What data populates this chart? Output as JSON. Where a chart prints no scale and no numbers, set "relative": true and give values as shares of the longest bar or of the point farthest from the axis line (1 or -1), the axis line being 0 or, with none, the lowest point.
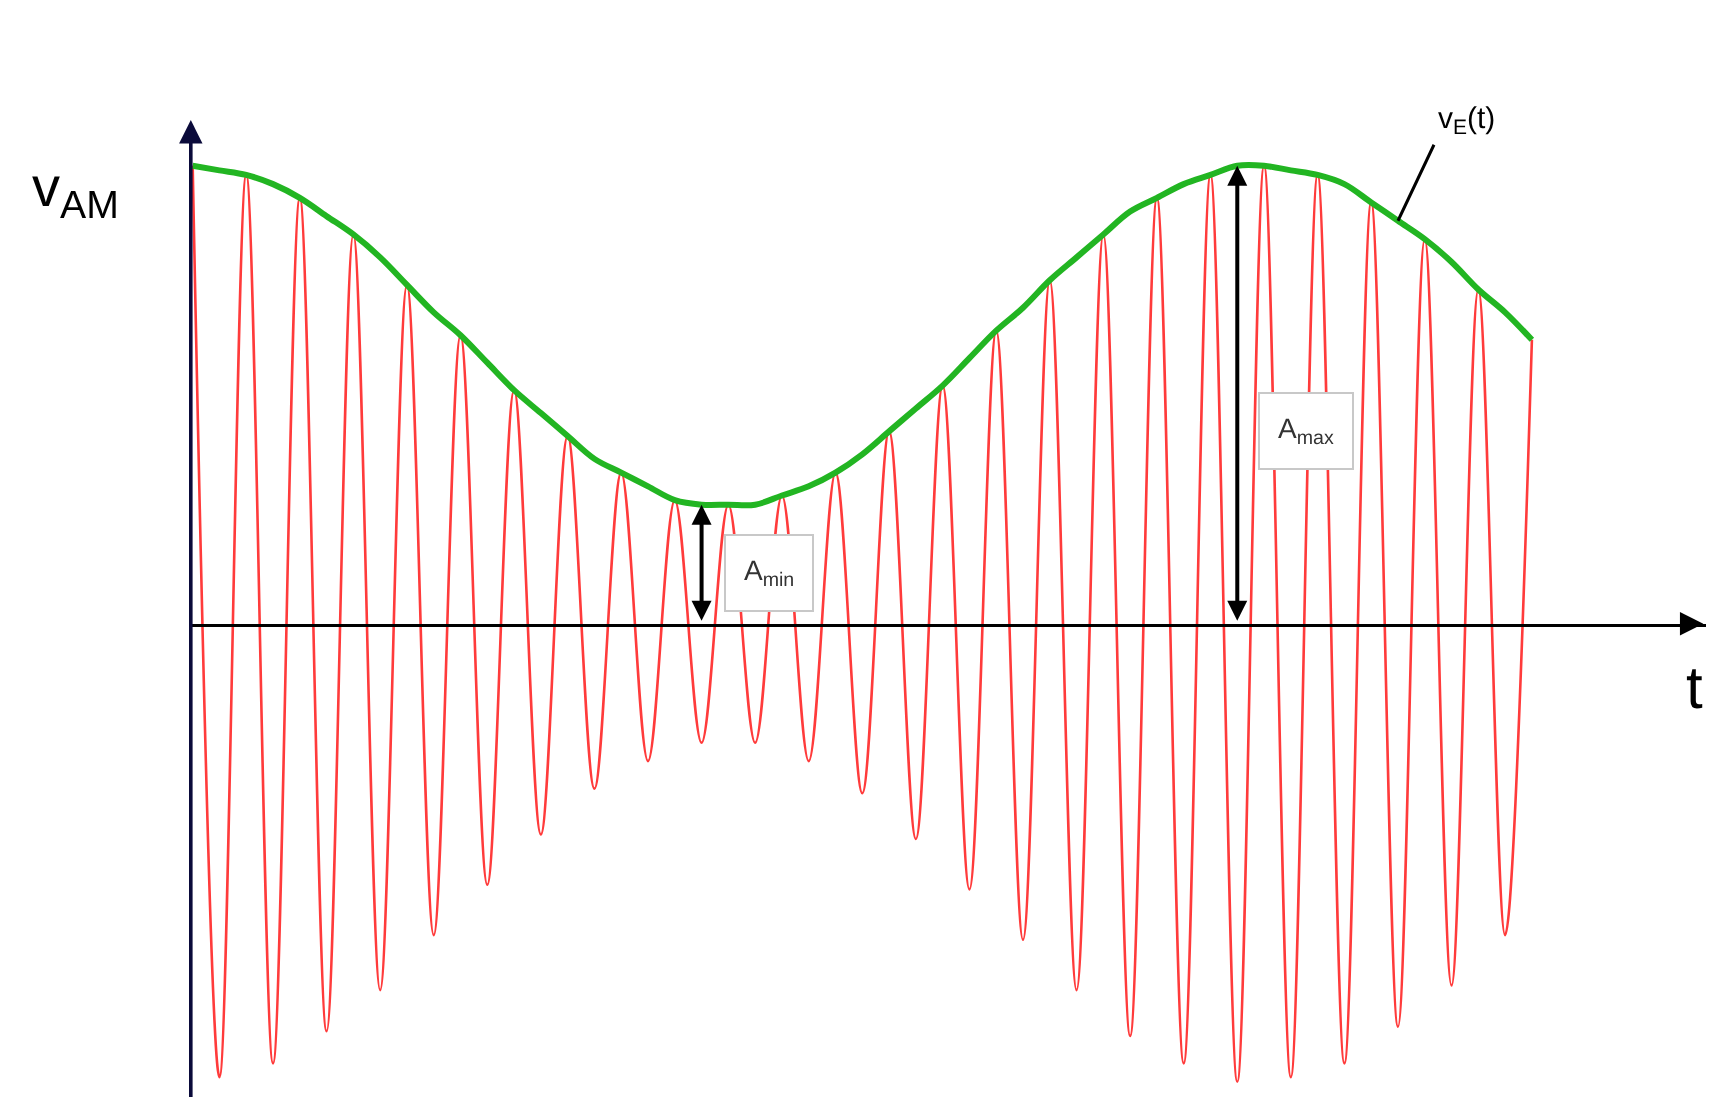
{
  "chart_data": {
    "type": "line",
    "relative": true,
    "ylabel": "v$_{AM}$",
    "xlabel": "t",
    "tick_labels": false,
    "legend": false,
    "categories": [
      null,
      null,
      null,
      null,
      null,
      null,
      null,
      null,
      null,
      null,
      null,
      null,
      null,
      null,
      null,
      null,
      null,
      null,
      null,
      null,
      null,
      null,
      null,
      null,
      null,
      null,
      null,
      null,
      null,
      null,
      null,
      null,
      null,
      null,
      null,
      null,
      null,
      null,
      null,
      null,
      null,
      null,
      null,
      null,
      null,
      null,
      null,
      null,
      null,
      null,
      null
    ],
    "series": [
      {
        "color": "#ff3b3b",
        "values": [
          1.0,
          -0.99,
          0.98,
          -0.96,
          0.93,
          -0.89,
          0.85,
          -0.8,
          0.74,
          -0.68,
          0.63,
          -0.57,
          0.51,
          -0.46,
          0.41,
          -0.36,
          0.33,
          -0.3,
          0.27,
          -0.26,
          0.26,
          -0.26,
          0.28,
          -0.3,
          0.33,
          -0.37,
          0.42,
          -0.47,
          0.52,
          -0.58,
          0.64,
          -0.69,
          0.75,
          -0.8,
          0.85,
          -0.9,
          0.93,
          -0.96,
          0.98,
          -1.0,
          1.0,
          -0.99,
          0.98,
          -0.96,
          0.92,
          -0.88,
          0.84,
          -0.79,
          0.73,
          -0.68,
          0.62
        ]
      },
      {
        "name": "v$_{E}$(t)",
        "color": "#22b522",
        "values": [
          1.0,
          0.99,
          0.98,
          0.96,
          0.93,
          0.89,
          0.85,
          0.8,
          0.74,
          0.68,
          0.63,
          0.57,
          0.51,
          0.46,
          0.41,
          0.36,
          0.33,
          0.3,
          0.27,
          0.26,
          0.26,
          0.26,
          0.28,
          0.3,
          0.33,
          0.37,
          0.42,
          0.47,
          0.52,
          0.58,
          0.64,
          0.69,
          0.75,
          0.8,
          0.85,
          0.9,
          0.93,
          0.96,
          0.98,
          1.0,
          1.0,
          0.99,
          0.98,
          0.96,
          0.92,
          0.88,
          0.84,
          0.79,
          0.73,
          0.68,
          0.62
        ]
      }
    ],
    "annotations": [
      "A$_{min}$",
      "A$_{max}$"
    ]
  }
}
